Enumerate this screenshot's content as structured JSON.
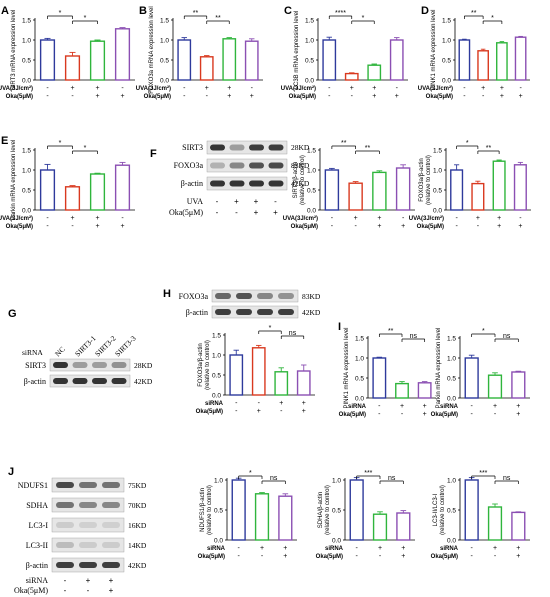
{
  "colors": {
    "ctrl": "#2e3a9c",
    "uva": "#d9391f",
    "uva_oka": "#2fb53c",
    "oka": "#8b4fb3",
    "sirna": "#2fb53c",
    "sirna_oka": "#8b4fb3"
  },
  "panels": [
    {
      "letter": "A",
      "ylabel": "SIRT3 mRNA expression level",
      "yticks": [
        "0.0",
        "0.5",
        "1.0",
        "1.5"
      ],
      "ymax": 1.5,
      "values": [
        1.0,
        0.6,
        0.97,
        1.28
      ],
      "errors": [
        0.04,
        0.09,
        0.03,
        0.03
      ],
      "colors": [
        "ctrl",
        "uva",
        "uva_oka",
        "oka"
      ],
      "sig": [
        {
          "a": 0,
          "b": 1,
          "label": "*"
        },
        {
          "a": 1,
          "b": 2,
          "label": "*"
        }
      ],
      "rows": [
        {
          "label": "UVA(3J/cm²)",
          "signs": [
            "-",
            "+",
            "+",
            "-"
          ]
        },
        {
          "label": "Oka(5μM)",
          "signs": [
            "-",
            "-",
            "+",
            "+"
          ]
        }
      ]
    },
    {
      "letter": "B",
      "ylabel": "FOXO3a mRNA expression level",
      "yticks": [
        "0.0",
        "0.5",
        "1.0",
        "1.5"
      ],
      "ymax": 1.5,
      "values": [
        1.0,
        0.58,
        1.03,
        0.97
      ],
      "errors": [
        0.06,
        0.03,
        0.03,
        0.06
      ],
      "colors": [
        "ctrl",
        "uva",
        "uva_oka",
        "oka"
      ],
      "sig": [
        {
          "a": 0,
          "b": 1,
          "label": "**"
        },
        {
          "a": 1,
          "b": 2,
          "label": "**"
        }
      ],
      "rows": [
        {
          "label": "UVA(3J/cm²)",
          "signs": [
            "-",
            "+",
            "+",
            "-"
          ]
        },
        {
          "label": "Oka(5μM)",
          "signs": [
            "-",
            "-",
            "+",
            "+"
          ]
        }
      ]
    },
    {
      "letter": "C",
      "ylabel": "LC3B mRNA expression level",
      "yticks": [
        "0.0",
        "0.5",
        "1.0",
        "1.5"
      ],
      "ymax": 1.5,
      "values": [
        1.0,
        0.16,
        0.37,
        1.0
      ],
      "errors": [
        0.07,
        0.02,
        0.03,
        0.06
      ],
      "colors": [
        "ctrl",
        "uva",
        "uva_oka",
        "oka"
      ],
      "sig": [
        {
          "a": 0,
          "b": 1,
          "label": "****"
        },
        {
          "a": 1,
          "b": 2,
          "label": "*"
        }
      ],
      "rows": [
        {
          "label": "UVA(3J/cm²)",
          "signs": [
            "-",
            "+",
            "+",
            "-"
          ]
        },
        {
          "label": "Oka(5μM)",
          "signs": [
            "-",
            "-",
            "+",
            "+"
          ]
        }
      ]
    },
    {
      "letter": "D",
      "ylabel": "PINK1 mRNA expression level",
      "yticks": [
        "0.0",
        "0.5",
        "1.0",
        "1.5"
      ],
      "ymax": 1.5,
      "values": [
        1.0,
        0.73,
        0.93,
        1.07
      ],
      "errors": [
        0.02,
        0.04,
        0.03,
        0.02
      ],
      "colors": [
        "ctrl",
        "uva",
        "uva_oka",
        "oka"
      ],
      "sig": [
        {
          "a": 0,
          "b": 1,
          "label": "**"
        },
        {
          "a": 1,
          "b": 2,
          "label": "*"
        }
      ],
      "rows": [
        {
          "label": "UVA(3J/cm²)",
          "signs": [
            "-",
            "+",
            "+",
            "-"
          ]
        },
        {
          "label": "Oka(5μM)",
          "signs": [
            "-",
            "-",
            "+",
            "+"
          ]
        }
      ]
    },
    {
      "letter": "E",
      "ylabel": "Parkin mRNA expression level",
      "yticks": [
        "0.0",
        "0.5",
        "1.0",
        "1.5"
      ],
      "ymax": 1.5,
      "values": [
        1.0,
        0.58,
        0.9,
        1.12
      ],
      "errors": [
        0.14,
        0.03,
        0.02,
        0.07
      ],
      "colors": [
        "ctrl",
        "uva",
        "uva_oka",
        "oka"
      ],
      "sig": [
        {
          "a": 0,
          "b": 1,
          "label": "*"
        },
        {
          "a": 1,
          "b": 2,
          "label": "*"
        }
      ],
      "rows": [
        {
          "label": "UVA(3J/cm²)",
          "signs": [
            "-",
            "+",
            "+",
            "-"
          ]
        },
        {
          "label": "Oka(5μM)",
          "signs": [
            "-",
            "-",
            "+",
            "+"
          ]
        }
      ]
    },
    {
      "letter": "",
      "ylabel": "SIRT3/β-actin (relative to control)",
      "yticks": [
        "0.0",
        "0.5",
        "1.0",
        "1.5"
      ],
      "ymax": 1.5,
      "values": [
        1.0,
        0.67,
        0.94,
        1.05
      ],
      "errors": [
        0.04,
        0.04,
        0.04,
        0.08
      ],
      "colors": [
        "ctrl",
        "uva",
        "uva_oka",
        "oka"
      ],
      "sig": [
        {
          "a": 0,
          "b": 1,
          "label": "**"
        },
        {
          "a": 1,
          "b": 2,
          "label": "**"
        }
      ],
      "rows": [
        {
          "label": "UVA(3J/cm²)",
          "signs": [
            "-",
            "+",
            "+",
            "-"
          ]
        },
        {
          "label": "Oka(5μM)",
          "signs": [
            "-",
            "-",
            "+",
            "+"
          ]
        }
      ]
    },
    {
      "letter": "",
      "ylabel": "FOXO3a/β-actin (relative to control)",
      "yticks": [
        "0.0",
        "0.5",
        "1.0",
        "1.5"
      ],
      "ymax": 1.5,
      "values": [
        1.0,
        0.66,
        1.22,
        1.13
      ],
      "errors": [
        0.13,
        0.06,
        0.03,
        0.06
      ],
      "colors": [
        "ctrl",
        "uva",
        "uva_oka",
        "oka"
      ],
      "sig": [
        {
          "a": 0,
          "b": 1,
          "label": "*"
        },
        {
          "a": 1,
          "b": 2,
          "label": "**"
        }
      ],
      "rows": [
        {
          "label": "UVA(3J/cm²)",
          "signs": [
            "-",
            "+",
            "+",
            "-"
          ]
        },
        {
          "label": "Oka(5μM)",
          "signs": [
            "-",
            "-",
            "+",
            "+"
          ]
        }
      ]
    },
    {
      "letter": "",
      "ylabel": "FOXO3a/β-actin (relative to control)",
      "yticks": [
        "0.0",
        "0.5",
        "1.0",
        "1.5"
      ],
      "ymax": 1.5,
      "values": [
        1.0,
        1.18,
        0.58,
        0.6
      ],
      "errors": [
        0.12,
        0.06,
        0.1,
        0.15
      ],
      "colors": [
        "ctrl",
        "uva",
        "uva_oka",
        "oka"
      ],
      "sig": [
        {
          "a": 1,
          "b": 2,
          "label": "*"
        },
        {
          "a": 2,
          "b": 3,
          "label": "ns"
        }
      ],
      "rows": [
        {
          "label": "siRNA",
          "signs": [
            "-",
            "-",
            "+",
            "+"
          ]
        },
        {
          "label": "Oka(5μM)",
          "signs": [
            "-",
            "+",
            "-",
            "+"
          ]
        }
      ]
    },
    {
      "letter": "",
      "ylabel": "PINK1 mRNA expression level",
      "yticks": [
        "0.0",
        "0.5",
        "1.0",
        "1.5"
      ],
      "ymax": 1.5,
      "values": [
        1.0,
        0.36,
        0.38
      ],
      "errors": [
        0.02,
        0.05,
        0.03
      ],
      "colors": [
        "ctrl",
        "sirna",
        "sirna_oka"
      ],
      "sig": [
        {
          "a": 0,
          "b": 1,
          "label": "**"
        },
        {
          "a": 1,
          "b": 2,
          "label": "ns"
        }
      ],
      "rows": [
        {
          "label": "siRNA",
          "signs": [
            "-",
            "+",
            "+"
          ]
        },
        {
          "label": "Oka(5μM)",
          "signs": [
            "-",
            "-",
            "+"
          ]
        }
      ]
    },
    {
      "letter": "",
      "ylabel": "Parkin mRNA expression level",
      "yticks": [
        "0.0",
        "0.5",
        "1.0",
        "1.5"
      ],
      "ymax": 1.5,
      "values": [
        1.0,
        0.57,
        0.65
      ],
      "errors": [
        0.07,
        0.06,
        0.02
      ],
      "colors": [
        "ctrl",
        "sirna",
        "sirna_oka"
      ],
      "sig": [
        {
          "a": 0,
          "b": 1,
          "label": "*"
        },
        {
          "a": 1,
          "b": 2,
          "label": "ns"
        }
      ],
      "rows": [
        {
          "label": "siRNA",
          "signs": [
            "-",
            "+",
            "+"
          ]
        },
        {
          "label": "Oka(5μM)",
          "signs": [
            "-",
            "-",
            "+"
          ]
        }
      ]
    },
    {
      "letter": "",
      "ylabel": "NDUFS1/β-actin (relative to control)",
      "yticks": [
        "0.0",
        "0.5",
        "1.0"
      ],
      "ymax": 1.0,
      "values": [
        1.0,
        0.77,
        0.73
      ],
      "errors": [
        0.03,
        0.02,
        0.04
      ],
      "colors": [
        "ctrl",
        "sirna",
        "sirna_oka"
      ],
      "sig": [
        {
          "a": 0,
          "b": 1,
          "label": "*"
        },
        {
          "a": 1,
          "b": 2,
          "label": "ns"
        }
      ],
      "rows": [
        {
          "label": "siRNA",
          "signs": [
            "-",
            "+",
            "+"
          ]
        },
        {
          "label": "Oka(5μM)",
          "signs": [
            "-",
            "-",
            "+"
          ]
        }
      ]
    },
    {
      "letter": "",
      "ylabel": "SDHA/β-actin (relative to control)",
      "yticks": [
        "0.0",
        "0.5",
        "1.0"
      ],
      "ymax": 1.0,
      "values": [
        1.0,
        0.43,
        0.45
      ],
      "errors": [
        0.04,
        0.04,
        0.04
      ],
      "colors": [
        "ctrl",
        "sirna",
        "sirna_oka"
      ],
      "sig": [
        {
          "a": 0,
          "b": 1,
          "label": "***"
        },
        {
          "a": 1,
          "b": 2,
          "label": "ns"
        }
      ],
      "rows": [
        {
          "label": "siRNA",
          "signs": [
            "-",
            "+",
            "+"
          ]
        },
        {
          "label": "Oka(5μM)",
          "signs": [
            "-",
            "-",
            "+"
          ]
        }
      ]
    },
    {
      "letter": "",
      "ylabel": "LC3-II/LC3-I (relative to control)",
      "yticks": [
        "0.0",
        "0.5",
        "1.0"
      ],
      "ymax": 1.0,
      "values": [
        1.0,
        0.55,
        0.46
      ],
      "errors": [
        0.04,
        0.05,
        0.01
      ],
      "colors": [
        "ctrl",
        "sirna",
        "sirna_oka"
      ],
      "sig": [
        {
          "a": 0,
          "b": 1,
          "label": "***"
        },
        {
          "a": 1,
          "b": 2,
          "label": "ns"
        }
      ],
      "rows": [
        {
          "label": "siRNA",
          "signs": [
            "-",
            "+",
            "+"
          ]
        },
        {
          "label": "Oka(5μM)",
          "signs": [
            "-",
            "-",
            "+"
          ]
        }
      ]
    }
  ],
  "blotF": {
    "letter": "F",
    "bands": [
      {
        "name": "SIRT3",
        "kd": "28KD"
      },
      {
        "name": "FOXO3a",
        "kd": "83KD"
      },
      {
        "name": "β-actin",
        "kd": "42KD"
      }
    ],
    "rows": [
      {
        "label": "UVA",
        "signs": [
          "-",
          "+",
          "+",
          "-"
        ]
      },
      {
        "label": "Oka(5μM)",
        "signs": [
          "-",
          "-",
          "+",
          "+"
        ]
      }
    ]
  },
  "blotG": {
    "letter": "G",
    "lanes_label": "siRNA",
    "lanes": [
      "NC",
      "SIRT3-1",
      "SIRT3-2",
      "SIRT3-3"
    ],
    "bands": [
      {
        "name": "SIRT3",
        "kd": "28KD"
      },
      {
        "name": "β-actin",
        "kd": "42KD"
      }
    ]
  },
  "blotH": {
    "letter": "H",
    "bands": [
      {
        "name": "FOXO3a",
        "kd": "83KD"
      },
      {
        "name": "β-actin",
        "kd": "42KD"
      }
    ]
  },
  "panelI": {
    "letter": "I"
  },
  "blotJ": {
    "letter": "J",
    "bands": [
      {
        "name": "NDUFS1",
        "kd": "75KD"
      },
      {
        "name": "SDHA",
        "kd": "70KD"
      },
      {
        "name": "LC3-I",
        "kd": "16KD"
      },
      {
        "name": "LC3-II",
        "kd": "14KD"
      },
      {
        "name": "β-actin",
        "kd": "42KD"
      }
    ],
    "rows": [
      {
        "label": "siRNA",
        "signs": [
          "-",
          "+",
          "+"
        ]
      },
      {
        "label": "Oka(5μM)",
        "signs": [
          "-",
          "-",
          "+"
        ]
      }
    ]
  }
}
